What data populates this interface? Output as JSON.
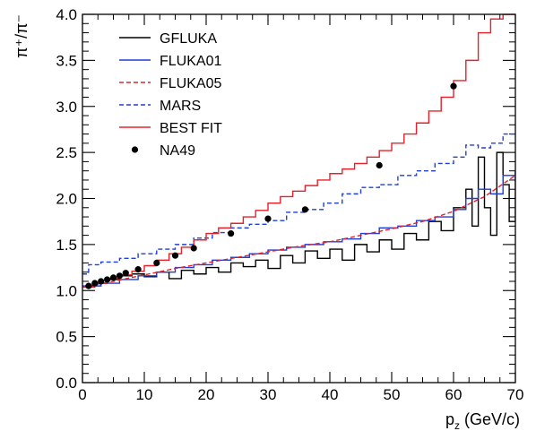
{
  "chart_data": {
    "type": "line",
    "title": "",
    "xlabel": "p_z (GeV/c)",
    "ylabel": "π⁺/π⁻",
    "xlim": [
      0,
      70
    ],
    "ylim": [
      0,
      4.0
    ],
    "x_ticks": [
      0,
      10,
      20,
      30,
      40,
      50,
      60,
      70
    ],
    "x_tick_labels": [
      "0",
      "10",
      "20",
      "30",
      "40",
      "50",
      "60",
      "70"
    ],
    "y_ticks": [
      0.0,
      0.5,
      1.0,
      1.5,
      2.0,
      2.5,
      3.0,
      3.5,
      4.0
    ],
    "y_tick_labels": [
      "0.0",
      "0.5",
      "1.0",
      "1.5",
      "2.0",
      "2.5",
      "3.0",
      "3.5",
      "4.0"
    ],
    "grid": false,
    "legend_position": "top-left",
    "series": [
      {
        "name": "GFLUKA",
        "style": "step-solid",
        "color": "#000000",
        "x": [
          0,
          2,
          4,
          6,
          8,
          10,
          12,
          14,
          16,
          18,
          20,
          22,
          24,
          26,
          28,
          30,
          32,
          34,
          36,
          38,
          40,
          42,
          44,
          46,
          48,
          50,
          52,
          54,
          56,
          58,
          60,
          62,
          63,
          64,
          65,
          66,
          67,
          68,
          69,
          70
        ],
        "y": [
          1.04,
          1.08,
          1.12,
          1.16,
          1.18,
          1.15,
          1.2,
          1.13,
          1.22,
          1.18,
          1.25,
          1.2,
          1.3,
          1.26,
          1.33,
          1.24,
          1.38,
          1.3,
          1.43,
          1.35,
          1.45,
          1.33,
          1.5,
          1.42,
          1.55,
          1.45,
          1.62,
          1.55,
          1.75,
          1.65,
          1.9,
          2.1,
          1.7,
          2.45,
          1.9,
          1.6,
          2.5,
          2.15,
          1.75,
          2.3
        ]
      },
      {
        "name": "FLUKA01",
        "style": "step-solid",
        "color": "#1e3fd8",
        "x": [
          0,
          3,
          6,
          9,
          12,
          15,
          18,
          21,
          24,
          27,
          30,
          33,
          36,
          39,
          42,
          45,
          48,
          51,
          54,
          57,
          60,
          62,
          64,
          66,
          68,
          70
        ],
        "y": [
          1.05,
          1.08,
          1.12,
          1.16,
          1.2,
          1.25,
          1.28,
          1.33,
          1.36,
          1.4,
          1.44,
          1.47,
          1.5,
          1.53,
          1.56,
          1.62,
          1.68,
          1.7,
          1.76,
          1.8,
          1.88,
          2.0,
          2.1,
          2.05,
          2.25,
          2.3
        ]
      },
      {
        "name": "FLUKA05",
        "style": "dashed",
        "color": "#e8202a",
        "x": [
          0,
          5,
          10,
          15,
          20,
          25,
          30,
          35,
          40,
          45,
          50,
          55,
          60,
          65,
          70
        ],
        "y": [
          1.04,
          1.1,
          1.17,
          1.24,
          1.3,
          1.36,
          1.42,
          1.48,
          1.53,
          1.6,
          1.67,
          1.75,
          1.86,
          2.02,
          2.25
        ]
      },
      {
        "name": "MARS",
        "style": "step-dashed",
        "color": "#1e3fd8",
        "x": [
          0,
          1,
          3,
          6,
          9,
          12,
          15,
          18,
          21,
          24,
          27,
          30,
          33,
          36,
          39,
          42,
          45,
          48,
          51,
          54,
          57,
          60,
          62,
          64,
          66,
          68,
          70
        ],
        "y": [
          1.18,
          1.28,
          1.31,
          1.35,
          1.4,
          1.45,
          1.5,
          1.57,
          1.63,
          1.68,
          1.72,
          1.76,
          1.85,
          1.88,
          1.95,
          2.05,
          2.12,
          2.15,
          2.25,
          2.3,
          2.38,
          2.45,
          2.58,
          2.55,
          2.6,
          2.7,
          2.7
        ]
      },
      {
        "name": "BEST FIT",
        "style": "step-solid",
        "color": "#e8202a",
        "x": [
          0,
          2,
          4,
          6,
          8,
          10,
          12,
          14,
          16,
          18,
          20,
          22,
          24,
          26,
          28,
          30,
          32,
          34,
          36,
          38,
          40,
          42,
          44,
          46,
          48,
          50,
          52,
          54,
          56,
          58,
          60,
          62,
          64,
          66,
          68,
          70
        ],
        "y": [
          1.04,
          1.08,
          1.13,
          1.17,
          1.21,
          1.27,
          1.33,
          1.4,
          1.47,
          1.55,
          1.62,
          1.68,
          1.73,
          1.8,
          1.87,
          1.95,
          2.02,
          2.08,
          2.14,
          2.2,
          2.27,
          2.32,
          2.38,
          2.45,
          2.52,
          2.6,
          2.7,
          2.82,
          2.95,
          3.1,
          3.28,
          3.5,
          3.8,
          3.95,
          4.0,
          4.0
        ]
      },
      {
        "name": "NA49",
        "style": "points",
        "color": "#000000",
        "x": [
          1,
          2,
          3,
          4,
          5,
          6,
          7,
          9,
          12,
          15,
          18,
          24,
          30,
          36,
          48,
          60
        ],
        "y": [
          1.05,
          1.08,
          1.1,
          1.12,
          1.14,
          1.16,
          1.19,
          1.23,
          1.3,
          1.38,
          1.46,
          1.62,
          1.78,
          1.88,
          2.36,
          3.22
        ]
      }
    ]
  }
}
